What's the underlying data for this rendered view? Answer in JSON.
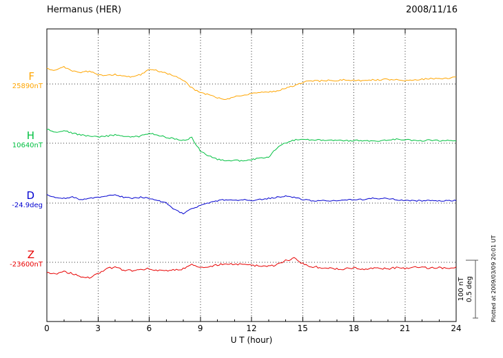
{
  "chart_data": {
    "type": "line",
    "title": "Hermanus (HER)",
    "date": "2008/11/16",
    "xlabel": "U T (hour)",
    "x_range": [
      0,
      24
    ],
    "x_ticks": [
      0,
      3,
      6,
      9,
      12,
      15,
      18,
      21,
      24
    ],
    "grid_hours": [
      3,
      6,
      9,
      12,
      15,
      18,
      21
    ],
    "x_start": 0,
    "x_step": 0.5,
    "scale_bar": {
      "labels": [
        "100 nT",
        "0.5 deg"
      ],
      "span_nT": 100,
      "span_deg": 0.5
    },
    "footnote": "Plotted at 2009/03/09 20:01 UT",
    "series": [
      {
        "name": "F",
        "baseline_label": "25890nT",
        "baseline_value": 25890,
        "unit": "nT",
        "color": "#FFA500",
        "offsets": [
          26,
          24,
          29,
          23,
          20,
          22,
          16,
          14,
          16,
          14,
          12,
          16,
          26,
          23,
          18,
          14,
          7,
          -7,
          -15,
          -19,
          -24,
          -27,
          -22,
          -20,
          -17,
          -15,
          -14,
          -12,
          -8,
          -3,
          3,
          5,
          5,
          6,
          6,
          7,
          6,
          6,
          7,
          7,
          8,
          7,
          6,
          7,
          8,
          9,
          9,
          10,
          11
        ]
      },
      {
        "name": "H",
        "baseline_label": "10640nT",
        "baseline_value": 10640,
        "unit": "nT",
        "color": "#00C040",
        "offsets": [
          24,
          19,
          22,
          17,
          14,
          12,
          10,
          12,
          14,
          12,
          10,
          12,
          17,
          14,
          10,
          7,
          5,
          9,
          -14,
          -22,
          -28,
          -31,
          -30,
          -31,
          -29,
          -26,
          -24,
          -8,
          0,
          5,
          6,
          5,
          5,
          4,
          5,
          4,
          4,
          4,
          4,
          4,
          5,
          7,
          6,
          4,
          4,
          5,
          4,
          4,
          4
        ]
      },
      {
        "name": "D",
        "baseline_label": "-24.9deg",
        "baseline_value": -24.9,
        "unit": "deg",
        "color": "#0000D0",
        "offsets": [
          0.07,
          0.05,
          0.04,
          0.05,
          0.03,
          0.04,
          0.05,
          0.06,
          0.07,
          0.05,
          0.04,
          0.05,
          0.04,
          0.02,
          0.0,
          -0.06,
          -0.09,
          -0.05,
          -0.02,
          0.0,
          0.02,
          0.03,
          0.02,
          0.03,
          0.02,
          0.03,
          0.04,
          0.05,
          0.06,
          0.05,
          0.03,
          0.02,
          0.02,
          0.02,
          0.02,
          0.03,
          0.03,
          0.03,
          0.04,
          0.04,
          0.04,
          0.03,
          0.02,
          0.02,
          0.02,
          0.02,
          0.02,
          0.02,
          0.02
        ]
      },
      {
        "name": "Z",
        "baseline_label": "-23600nT",
        "baseline_value": -23600,
        "unit": "nT",
        "color": "#E80000",
        "offsets": [
          -17,
          -21,
          -15,
          -20,
          -24,
          -26,
          -19,
          -11,
          -8,
          -13,
          -14,
          -12,
          -11,
          -14,
          -15,
          -13,
          -11,
          -4,
          -9,
          -7,
          -4,
          -2,
          -4,
          -2,
          -5,
          -6,
          -7,
          -4,
          3,
          7,
          -2,
          -7,
          -9,
          -10,
          -11,
          -11,
          -10,
          -11,
          -11,
          -10,
          -11,
          -9,
          -11,
          -9,
          -8,
          -10,
          -9,
          -10,
          -9
        ]
      }
    ]
  }
}
